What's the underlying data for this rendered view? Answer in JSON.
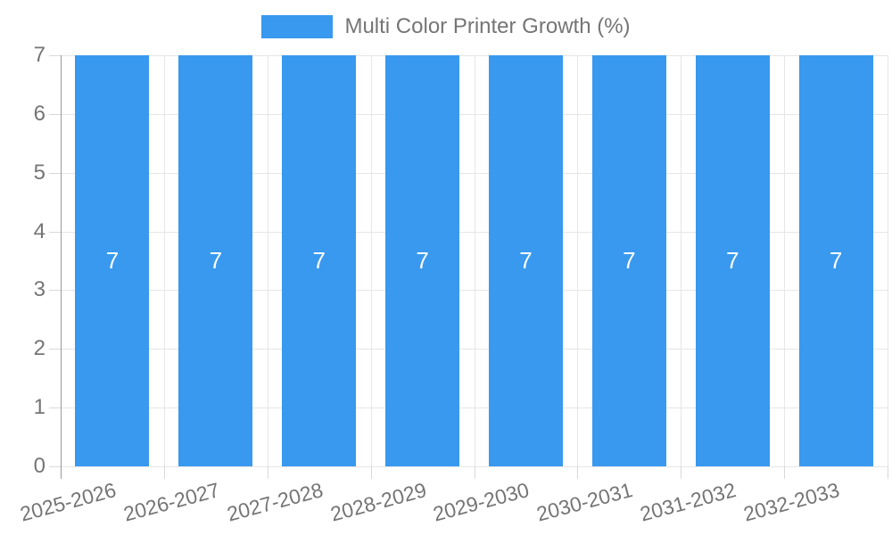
{
  "legend": {
    "label": "Multi Color Printer Growth (%)"
  },
  "chart_data": {
    "type": "bar",
    "title": "",
    "categories": [
      "2025-2026",
      "2026-2027",
      "2027-2028",
      "2028-2029",
      "2029-2030",
      "2030-2031",
      "2031-2032",
      "2032-2033"
    ],
    "series": [
      {
        "name": "Multi Color Printer Growth (%)",
        "values": [
          7,
          7,
          7,
          7,
          7,
          7,
          7,
          7
        ]
      }
    ],
    "bar_value_labels": [
      "7",
      "7",
      "7",
      "7",
      "7",
      "7",
      "7",
      "7"
    ],
    "xlabel": "",
    "ylabel": "",
    "ylim": [
      0,
      7
    ],
    "yticks": [
      "0",
      "1",
      "2",
      "3",
      "4",
      "5",
      "6",
      "7"
    ],
    "grid": true,
    "legend_position": "top-center",
    "x_label_rotation_deg": -15,
    "colors": {
      "bar": "#3899ee",
      "bar_label": "#ffffff",
      "axis_text": "#757575",
      "gridline": "#e6e6e6",
      "axis_line": "#9a9a9a",
      "tick": "#d9d9d9",
      "background": "#ffffff"
    }
  }
}
